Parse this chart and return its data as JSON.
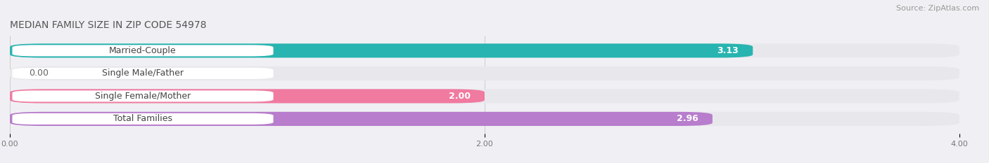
{
  "title": "MEDIAN FAMILY SIZE IN ZIP CODE 54978",
  "source": "Source: ZipAtlas.com",
  "categories": [
    "Married-Couple",
    "Single Male/Father",
    "Single Female/Mother",
    "Total Families"
  ],
  "values": [
    3.13,
    0.0,
    2.0,
    2.96
  ],
  "bar_colors": [
    "#28b4b0",
    "#9db5e8",
    "#f07aA0",
    "#b87dcc"
  ],
  "xlim": [
    0,
    4.0
  ],
  "xticks": [
    0.0,
    2.0,
    4.0
  ],
  "xtick_labels": [
    "0.00",
    "2.00",
    "4.00"
  ],
  "bar_height": 0.62,
  "row_bg_color": "#e8e8ec",
  "background_color": "#f0f0f4",
  "title_fontsize": 10,
  "source_fontsize": 8,
  "label_fontsize": 9,
  "value_fontsize": 9
}
